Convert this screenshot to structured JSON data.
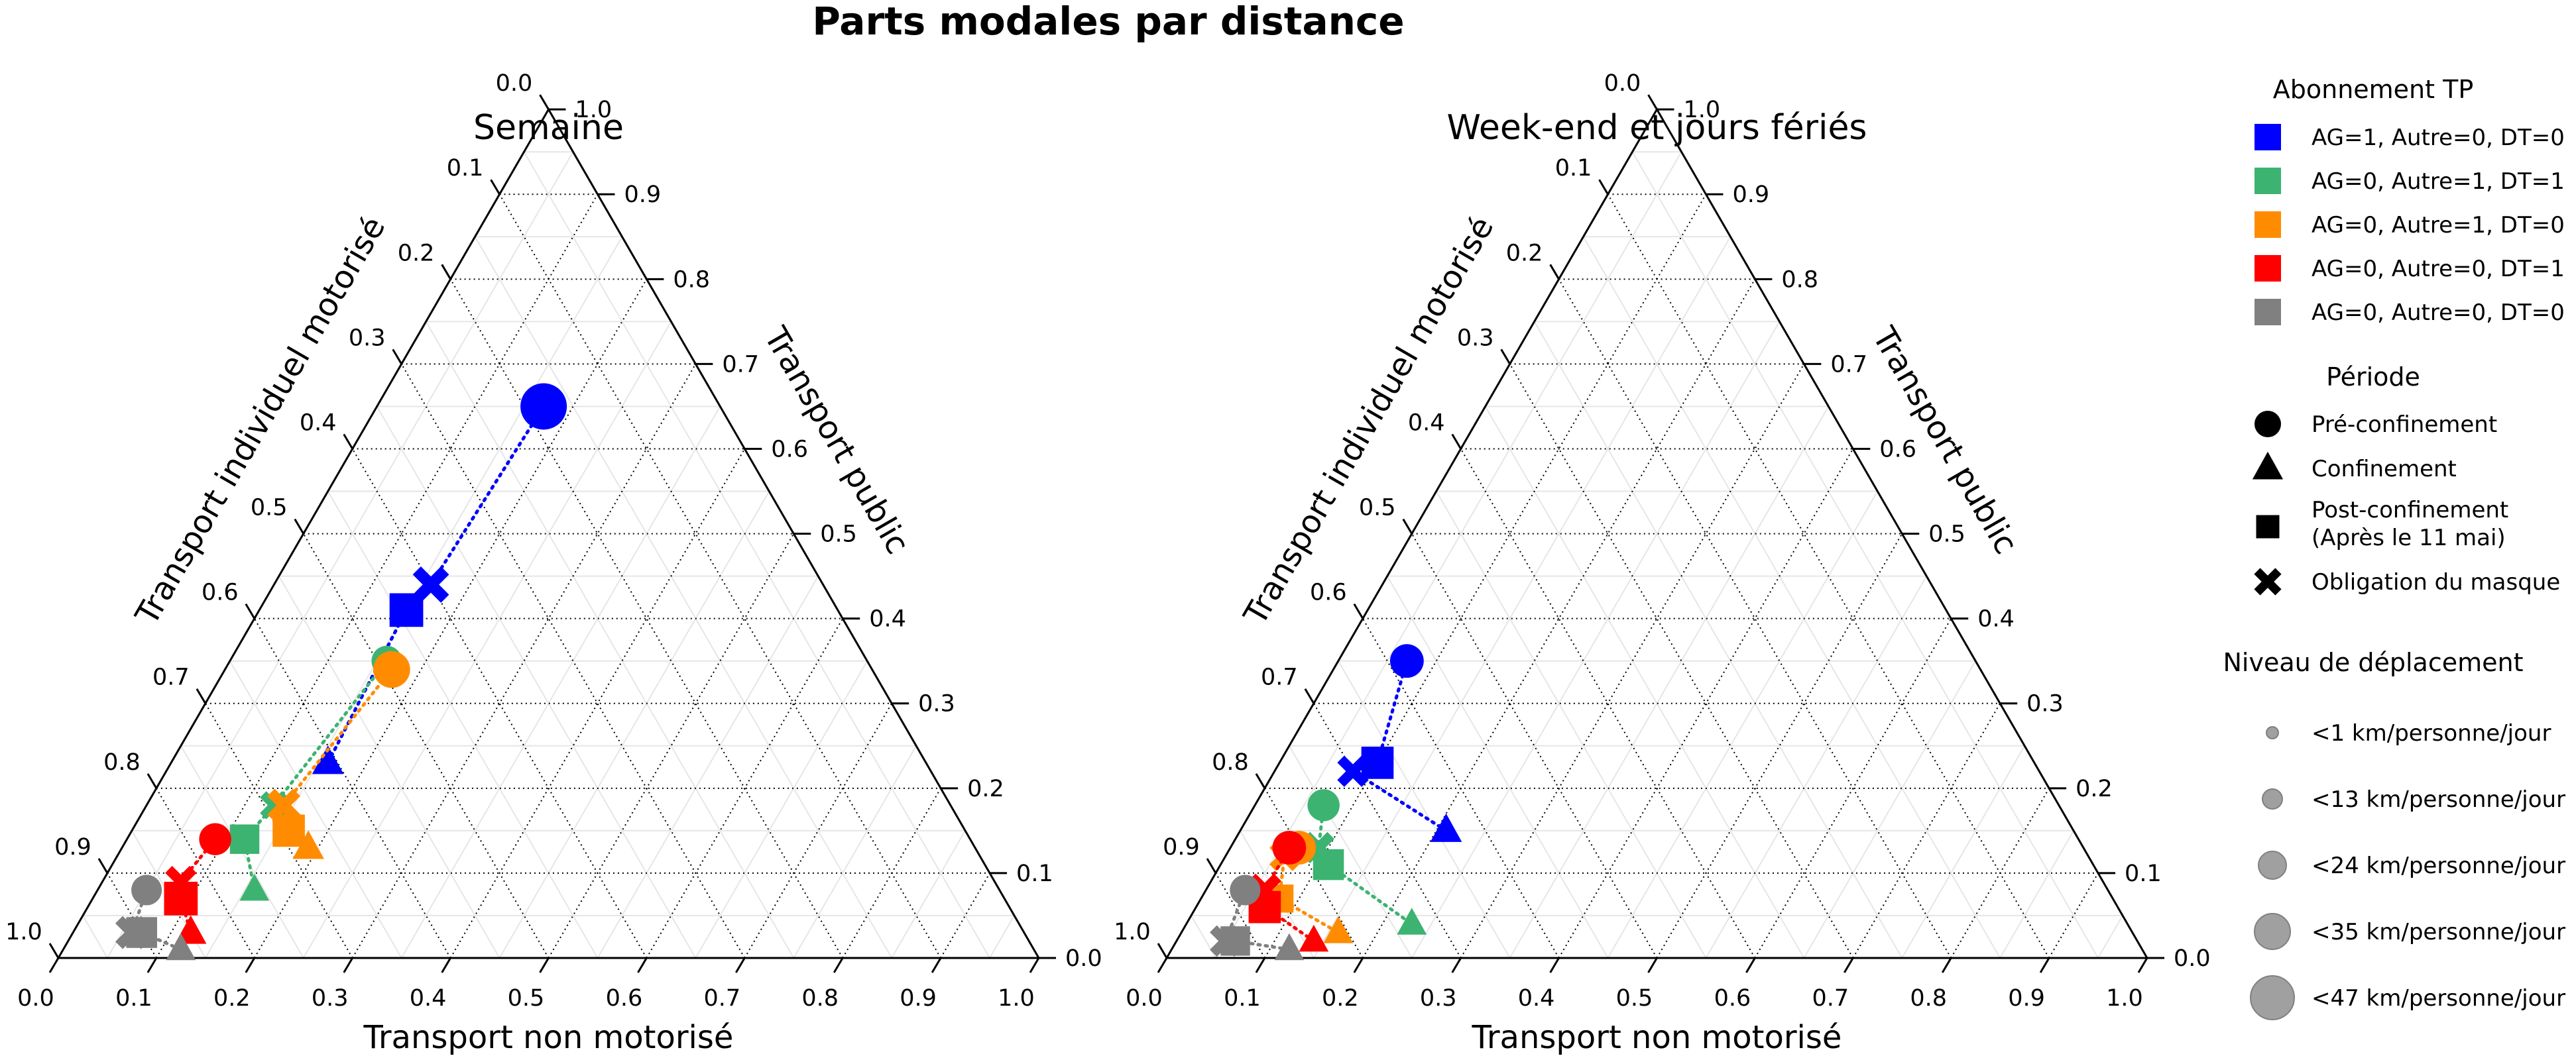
{
  "title": "Parts modales par distance",
  "colors": {
    "AG=1, Autre=0, DT=0": "#0000ff",
    "AG=0, Autre=1, DT=1": "#3cb371",
    "AG=0, Autre=1, DT=0": "#ff8c00",
    "AG=0, Autre=0, DT=1": "#ff0000",
    "AG=0, Autre=0, DT=0": "#808080"
  },
  "ticks": [
    "0.0",
    "0.1",
    "0.2",
    "0.3",
    "0.4",
    "0.5",
    "0.6",
    "0.7",
    "0.8",
    "0.9",
    "1.0"
  ],
  "legend": {
    "abonnement_title": "Abonnement TP",
    "abonnement": [
      {
        "label": "AG=1, Autre=0, DT=0",
        "color": "#0000ff"
      },
      {
        "label": "AG=0, Autre=1, DT=1",
        "color": "#3cb371"
      },
      {
        "label": "AG=0, Autre=1, DT=0",
        "color": "#ff8c00"
      },
      {
        "label": "AG=0, Autre=0, DT=1",
        "color": "#ff0000"
      },
      {
        "label": "AG=0, Autre=0, DT=0",
        "color": "#808080"
      }
    ],
    "periode_title": "Période",
    "periode": [
      {
        "label": "Pré-confinement",
        "marker": "circle"
      },
      {
        "label": "Confinement",
        "marker": "triangle"
      },
      {
        "label": "Post-confinement",
        "label2": "(Après le 11 mai)",
        "marker": "square"
      },
      {
        "label": "Obligation du masque",
        "marker": "x"
      }
    ],
    "niveau_title": "Niveau de déplacement",
    "niveau": [
      {
        "label": "<1 km/personne/jour",
        "km": 1
      },
      {
        "label": "<13 km/personne/jour",
        "km": 13
      },
      {
        "label": "<24 km/personne/jour",
        "km": 24
      },
      {
        "label": "<35 km/personne/jour",
        "km": 35
      },
      {
        "label": "<47 km/personne/jour",
        "km": 47
      }
    ]
  },
  "chart_data": [
    {
      "type": "ternary-scatter",
      "title": "Semaine",
      "axis_bottom": "Transport non motorisé",
      "axis_left": "Transport individuel motorisé",
      "axis_right": "Transport public",
      "series": [
        {
          "name": "AG=1, Autre=0, DT=0",
          "color": "#0000ff",
          "points": [
            {
              "period": "Pré-confinement",
              "marker": "circle",
              "nm": 0.17,
              "tp": 0.65,
              "km": 40
            },
            {
              "period": "Obligation du masque",
              "marker": "x",
              "nm": 0.16,
              "tp": 0.44,
              "km": 26
            },
            {
              "period": "Post-confinement",
              "marker": "square",
              "nm": 0.15,
              "tp": 0.41,
              "km": 30
            },
            {
              "period": "Confinement",
              "marker": "triangle",
              "nm": 0.16,
              "tp": 0.23,
              "km": 16
            }
          ]
        },
        {
          "name": "AG=0, Autre=1, DT=1",
          "color": "#3cb371",
          "points": [
            {
              "period": "Pré-confinement",
              "marker": "circle",
              "nm": 0.16,
              "tp": 0.35,
              "km": 20
            },
            {
              "period": "Obligation du masque",
              "marker": "x",
              "nm": 0.13,
              "tp": 0.18,
              "km": 16
            },
            {
              "period": "Post-confinement",
              "marker": "square",
              "nm": 0.12,
              "tp": 0.14,
              "km": 24
            },
            {
              "period": "Confinement",
              "marker": "triangle",
              "nm": 0.16,
              "tp": 0.08,
              "km": 14
            }
          ]
        },
        {
          "name": "AG=0, Autre=1, DT=0",
          "color": "#ff8c00",
          "points": [
            {
              "period": "Pré-confinement",
              "marker": "circle",
              "nm": 0.17,
              "tp": 0.34,
              "km": 28
            },
            {
              "period": "Obligation du masque",
              "marker": "x",
              "nm": 0.14,
              "tp": 0.18,
              "km": 22
            },
            {
              "period": "Post-confinement",
              "marker": "square",
              "nm": 0.16,
              "tp": 0.15,
              "km": 28
            },
            {
              "period": "Confinement",
              "marker": "triangle",
              "nm": 0.19,
              "tp": 0.13,
              "km": 16
            }
          ]
        },
        {
          "name": "AG=0, Autre=0, DT=1",
          "color": "#ff0000",
          "points": [
            {
              "period": "Pré-confinement",
              "marker": "circle",
              "nm": 0.09,
              "tp": 0.14,
              "km": 22
            },
            {
              "period": "Obligation du masque",
              "marker": "x",
              "nm": 0.08,
              "tp": 0.09,
              "km": 20
            },
            {
              "period": "Post-confinement",
              "marker": "square",
              "nm": 0.09,
              "tp": 0.07,
              "km": 30
            },
            {
              "period": "Confinement",
              "marker": "triangle",
              "nm": 0.12,
              "tp": 0.03,
              "km": 16
            }
          ]
        },
        {
          "name": "AG=0, Autre=0, DT=0",
          "color": "#808080",
          "points": [
            {
              "period": "Pré-confinement",
              "marker": "circle",
              "nm": 0.05,
              "tp": 0.08,
              "km": 20
            },
            {
              "period": "Obligation du masque",
              "marker": "x",
              "nm": 0.06,
              "tp": 0.03,
              "km": 22
            },
            {
              "period": "Post-confinement",
              "marker": "square",
              "nm": 0.07,
              "tp": 0.03,
              "km": 26
            },
            {
              "period": "Confinement",
              "marker": "triangle",
              "nm": 0.12,
              "tp": 0.01,
              "km": 14
            }
          ]
        }
      ]
    },
    {
      "type": "ternary-scatter",
      "title": "Week-end et jours fériés",
      "axis_bottom": "Transport non motorisé",
      "axis_left": "Transport individuel motorisé",
      "axis_right": "Transport public",
      "series": [
        {
          "name": "AG=1, Autre=0, DT=0",
          "color": "#0000ff",
          "points": [
            {
              "period": "Pré-confinement",
              "marker": "circle",
              "nm": 0.07,
              "tp": 0.35,
              "km": 24
            },
            {
              "period": "Post-confinement",
              "marker": "square",
              "nm": 0.1,
              "tp": 0.23,
              "km": 28
            },
            {
              "period": "Obligation du masque",
              "marker": "x",
              "nm": 0.08,
              "tp": 0.22,
              "km": 20
            },
            {
              "period": "Confinement",
              "marker": "triangle",
              "nm": 0.21,
              "tp": 0.15,
              "km": 16
            }
          ]
        },
        {
          "name": "AG=0, Autre=1, DT=1",
          "color": "#3cb371",
          "points": [
            {
              "period": "Pré-confinement",
              "marker": "circle",
              "nm": 0.07,
              "tp": 0.18,
              "km": 22
            },
            {
              "period": "Obligation du masque",
              "marker": "x",
              "nm": 0.09,
              "tp": 0.13,
              "km": 20
            },
            {
              "period": "Post-confinement",
              "marker": "square",
              "nm": 0.11,
              "tp": 0.11,
              "km": 26
            },
            {
              "period": "Confinement",
              "marker": "triangle",
              "nm": 0.23,
              "tp": 0.04,
              "km": 14
            }
          ]
        },
        {
          "name": "AG=0, Autre=1, DT=0",
          "color": "#ff8c00",
          "points": [
            {
              "period": "Pré-confinement",
              "marker": "circle",
              "nm": 0.07,
              "tp": 0.13,
              "km": 24
            },
            {
              "period": "Obligation du masque",
              "marker": "x",
              "nm": 0.06,
              "tp": 0.12,
              "km": 18
            },
            {
              "period": "Post-confinement",
              "marker": "square",
              "nm": 0.08,
              "tp": 0.07,
              "km": 22
            },
            {
              "period": "Confinement",
              "marker": "triangle",
              "nm": 0.16,
              "tp": 0.03,
              "km": 14
            }
          ]
        },
        {
          "name": "AG=0, Autre=0, DT=1",
          "color": "#ff0000",
          "points": [
            {
              "period": "Pré-confinement",
              "marker": "circle",
              "nm": 0.06,
              "tp": 0.13,
              "km": 24
            },
            {
              "period": "Obligation du masque",
              "marker": "x",
              "nm": 0.06,
              "tp": 0.08,
              "km": 22
            },
            {
              "period": "Post-confinement",
              "marker": "square",
              "nm": 0.07,
              "tp": 0.06,
              "km": 28
            },
            {
              "period": "Confinement",
              "marker": "triangle",
              "nm": 0.14,
              "tp": 0.02,
              "km": 14
            }
          ]
        },
        {
          "name": "AG=0, Autre=0, DT=0",
          "color": "#808080",
          "points": [
            {
              "period": "Pré-confinement",
              "marker": "circle",
              "nm": 0.04,
              "tp": 0.08,
              "km": 20
            },
            {
              "period": "Obligation du masque",
              "marker": "x",
              "nm": 0.05,
              "tp": 0.02,
              "km": 20
            },
            {
              "period": "Post-confinement",
              "marker": "square",
              "nm": 0.06,
              "tp": 0.02,
              "km": 24
            },
            {
              "period": "Confinement",
              "marker": "triangle",
              "nm": 0.12,
              "tp": 0.01,
              "km": 14
            }
          ]
        }
      ]
    }
  ]
}
